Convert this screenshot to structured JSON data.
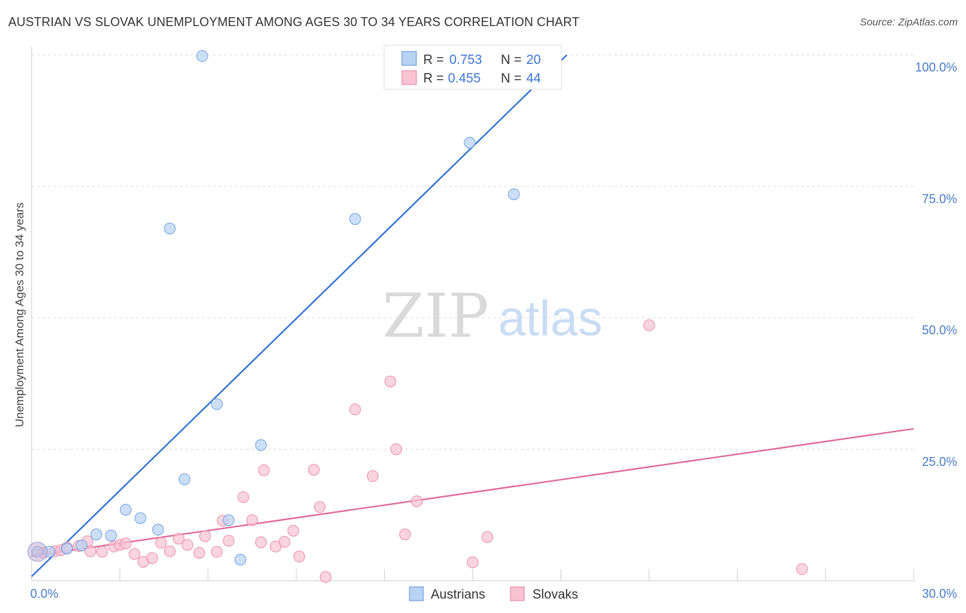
{
  "header": {
    "title": "AUSTRIAN VS SLOVAK UNEMPLOYMENT AMONG AGES 30 TO 34 YEARS CORRELATION CHART",
    "source": "Source: ZipAtlas.com"
  },
  "watermark": {
    "zip": "ZIP",
    "atlas": "atlas"
  },
  "legend": {
    "r_label": "R =",
    "n_label": "N =",
    "austrians": {
      "r": "0.753",
      "n": "20"
    },
    "slovaks": {
      "r": "0.455",
      "n": "44"
    }
  },
  "bottom_legend": {
    "austrians": "Austrians",
    "slovaks": "Slovaks"
  },
  "chart_data": {
    "type": "scatter",
    "title": "AUSTRIAN VS SLOVAK UNEMPLOYMENT AMONG AGES 30 TO 34 YEARS CORRELATION CHART",
    "xlabel": "",
    "ylabel": "Unemployment Among Ages 30 to 34 years",
    "xlim": [
      0,
      30
    ],
    "ylim": [
      0,
      100
    ],
    "x_tick_labels": [
      "0.0%",
      "30.0%"
    ],
    "y_tick_labels": [
      {
        "v": 100,
        "label": "100.0%"
      },
      {
        "v": 75,
        "label": "75.0%"
      },
      {
        "v": 50,
        "label": "50.0%"
      },
      {
        "v": 25,
        "label": "25.0%"
      }
    ],
    "colors": {
      "austrians_fill": "#b8d2f3",
      "austrians_stroke": "#6f9fe0",
      "austrians_line": "#2f6fd0",
      "slovaks_fill": "#f8c2d2",
      "slovaks_stroke": "#ea8fac",
      "slovaks_line": "#e0689a"
    },
    "series": [
      {
        "name": "Austrians",
        "points": [
          [
            0.2,
            5.5
          ],
          [
            0.6,
            5.5
          ],
          [
            1.2,
            6.1
          ],
          [
            1.7,
            6.7
          ],
          [
            2.2,
            8.8
          ],
          [
            2.7,
            8.6
          ],
          [
            3.2,
            13.5
          ],
          [
            3.7,
            11.9
          ],
          [
            4.3,
            9.7
          ],
          [
            4.7,
            67.0
          ],
          [
            5.2,
            19.3
          ],
          [
            5.8,
            99.8
          ],
          [
            6.3,
            33.6
          ],
          [
            6.7,
            11.5
          ],
          [
            7.1,
            4.0
          ],
          [
            7.8,
            25.8
          ],
          [
            11.0,
            68.8
          ],
          [
            14.1,
            99.8
          ],
          [
            14.9,
            83.3
          ],
          [
            16.4,
            73.5
          ]
        ],
        "trend": [
          [
            0.0,
            0.8
          ],
          [
            18.2,
            100.0
          ]
        ]
      },
      {
        "name": "Slovaks",
        "points": [
          [
            0.4,
            5.3
          ],
          [
            0.8,
            5.6
          ],
          [
            1.0,
            5.8
          ],
          [
            1.2,
            6.3
          ],
          [
            1.6,
            6.6
          ],
          [
            1.9,
            7.5
          ],
          [
            2.0,
            5.6
          ],
          [
            2.4,
            5.5
          ],
          [
            2.8,
            6.5
          ],
          [
            3.0,
            6.8
          ],
          [
            3.2,
            7.1
          ],
          [
            3.5,
            5.1
          ],
          [
            3.8,
            3.6
          ],
          [
            4.1,
            4.3
          ],
          [
            4.4,
            7.2
          ],
          [
            4.7,
            5.6
          ],
          [
            5.0,
            8.0
          ],
          [
            5.3,
            6.8
          ],
          [
            5.7,
            5.3
          ],
          [
            5.9,
            8.5
          ],
          [
            6.3,
            5.5
          ],
          [
            6.5,
            11.4
          ],
          [
            6.7,
            7.6
          ],
          [
            7.2,
            15.9
          ],
          [
            7.5,
            11.5
          ],
          [
            7.8,
            7.3
          ],
          [
            7.9,
            21.0
          ],
          [
            8.3,
            6.5
          ],
          [
            8.6,
            7.4
          ],
          [
            8.9,
            9.5
          ],
          [
            9.1,
            4.6
          ],
          [
            9.6,
            21.1
          ],
          [
            9.8,
            14.0
          ],
          [
            10.0,
            0.7
          ],
          [
            11.0,
            32.6
          ],
          [
            11.6,
            19.9
          ],
          [
            12.2,
            37.9
          ],
          [
            12.4,
            25.0
          ],
          [
            12.7,
            8.8
          ],
          [
            13.1,
            15.1
          ],
          [
            15.0,
            3.5
          ],
          [
            15.5,
            8.3
          ],
          [
            21.0,
            48.6
          ],
          [
            26.2,
            2.2
          ]
        ],
        "trend": [
          [
            0.0,
            4.7
          ],
          [
            30.0,
            28.9
          ]
        ]
      }
    ],
    "grid": true,
    "legend_position": "top-center"
  }
}
